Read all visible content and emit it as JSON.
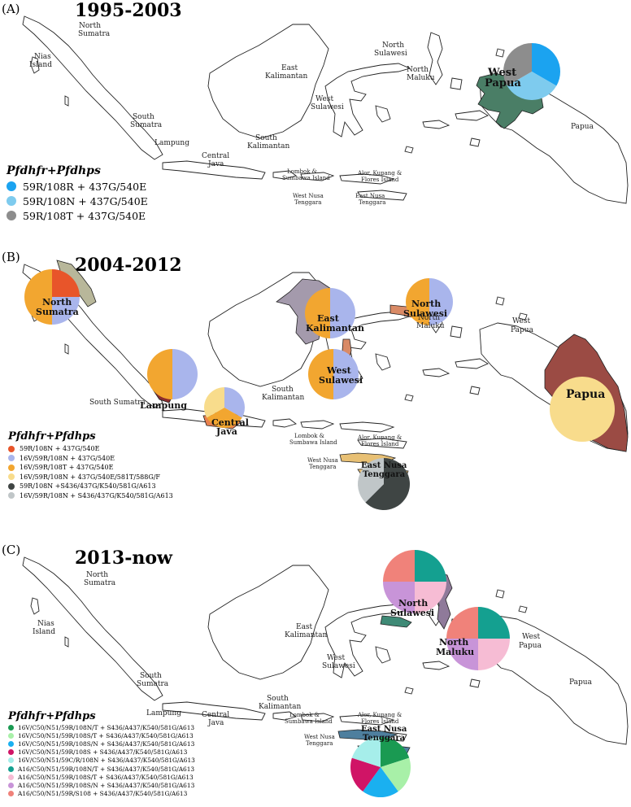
{
  "colors": {
    "c_blue": "#1ba3f0",
    "c_lightblue": "#7ecbee",
    "c_gray": "#8d8d8d",
    "c_red": "#e8552a",
    "c_periwinkle": "#a9b5ec",
    "c_orange": "#f2a630",
    "c_cream": "#f8dc8c",
    "c_dark": "#3f4544",
    "c_silver": "#c0c6c8",
    "c_green": "#1a9a52",
    "c_mint": "#a8f0a8",
    "c_sky": "#1ab0f0",
    "c_magenta": "#d01466",
    "c_aqua": "#a6eeea",
    "c_teal": "#14a090",
    "c_pink": "#f6bcd4",
    "c_orchid": "#c894d8",
    "c_salmon": "#f0827a"
  },
  "panels": [
    {
      "label": "(A)",
      "period": "1995-2003",
      "legend_title": "Pfdhfr+Pfdhps",
      "legend": [
        {
          "text": "59R/108R + 437G/540E",
          "color": "c_blue"
        },
        {
          "text": "59R/108N + 437G/540E",
          "color": "c_lightblue"
        },
        {
          "text": "59R/108T + 437G/540E",
          "color": "c_gray"
        }
      ],
      "labels": {
        "north_sumatra": "North",
        "north_sumatra2": "Sumatra",
        "nias": "Nias",
        "nias2": "Island",
        "south_sumatra": "South",
        "south_sumatra2": "Sumatra",
        "lampung": "Lampung",
        "central_java": "Central",
        "central_java2": "Java",
        "east_kal": "East",
        "east_kal2": "Kalimantan",
        "south_kal": "South",
        "south_kal2": "Kalimantan",
        "north_sul": "North",
        "north_sul2": "Sulawesi",
        "west_sul": "West",
        "west_sul2": "Sulawesi",
        "north_maluku": "North",
        "north_maluku2": "Maluku",
        "west_papua": "West",
        "west_papua2": "Papua",
        "papua": "Papua",
        "lombok": "Lombok &",
        "lombok2": "Sumbawa Island",
        "alor": "Alor, Kupang &",
        "alor2": "Flores Island",
        "wnt": "West Nusa",
        "wnt2": "Tenggara",
        "ent": "East Nusa",
        "ent2": "Tenggara"
      }
    },
    {
      "label": "(B)",
      "period": "2004-2012",
      "legend_title": "Pfdhfr+Pfdhps",
      "legend": [
        {
          "text": "59R/108N + 437G/540E",
          "color": "c_red"
        },
        {
          "text": "16V/59R/108N + 437G/540E",
          "color": "c_periwinkle"
        },
        {
          "text": "16V/59R/108T + 437G/540E",
          "color": "c_orange"
        },
        {
          "text": "16V/59R/108N + 437G/540E/581T/588G/F",
          "color": "c_cream"
        },
        {
          "text": "59R/108N +S436/437G/K540/581G/A613",
          "color": "c_dark"
        },
        {
          "text": "16V/59R/108N + S436/437G/K540/581G/A613",
          "color": "c_silver"
        }
      ],
      "labels": {
        "north_sumatra": "North",
        "north_sumatra2": "Sumatra",
        "south_sumatra": "South Sumatra",
        "lampung": "Lampung",
        "central_java": "Central",
        "central_java2": "Java",
        "east_kal": "East",
        "east_kal2": "Kalimantan",
        "south_kal": "South",
        "south_kal2": "Kalimantan",
        "north_sul": "North",
        "north_sul2": "Sulawesi",
        "west_sul": "West",
        "west_sul2": "Sulawesi",
        "north_maluku": "North",
        "north_maluku2": "Maluku",
        "west_papua": "West",
        "west_papua2": "Papua",
        "papua": "Papua",
        "lombok": "Lombok &",
        "lombok2": "Sumbawa Island",
        "alor": "Alor, Kupang &",
        "alor2": "Flores Island",
        "wnt": "West Nusa",
        "wnt2": "Tenggara",
        "ent": "East Nusa",
        "ent2": "Tenggara"
      }
    },
    {
      "label": "(C)",
      "period": "2013-now",
      "legend_title": "Pfdhfr+Pfdhps",
      "legend": [
        {
          "text": "16V/C50/N51/59R/108N/T + S436/A437/K540/581G/A613",
          "color": "c_green"
        },
        {
          "text": "16V/C50/N51/59R/108S/T + S436/A437/K540/581G/A613",
          "color": "c_mint"
        },
        {
          "text": "16V/C50/N51/59R/108S/N + S436/A437/K540/581G/A613",
          "color": "c_sky"
        },
        {
          "text": "16V/C50/N51/59R/108S + S436/A437/K540/581G/A613",
          "color": "c_magenta"
        },
        {
          "text": "16V/C50/N51/59C/R/108N + S436/A437/K540/581G/A613",
          "color": "c_aqua"
        },
        {
          "text": "A16/C50/N51/59R/108N/T + S436/A437/K540/581G/A613",
          "color": "c_teal"
        },
        {
          "text": "A16/C50/N51/59R/108S/T + S436/A437/K540/581G/A613",
          "color": "c_pink"
        },
        {
          "text": "A16/C50/N51/59R/108S/N + S436/A437/K540/581G/A613",
          "color": "c_orchid"
        },
        {
          "text": "A16/C50/N51/59R/S108 + S436/A437/K540/581G/A613",
          "color": "c_salmon"
        }
      ],
      "labels": {
        "north_sumatra": "North",
        "north_sumatra2": "Sumatra",
        "nias": "Nias",
        "nias2": "Island",
        "south_sumatra": "South",
        "south_sumatra2": "Sumatra",
        "lampung": "Lampung",
        "central_java": "Central",
        "central_java2": "Java",
        "east_kal": "East",
        "east_kal2": "Kalimantan",
        "south_kal": "South",
        "south_kal2": "Kalimantan",
        "north_sul": "North",
        "north_sul2": "Sulawesi",
        "west_sul": "West",
        "west_sul2": "Sulawesi",
        "north_maluku": "North",
        "north_maluku2": "Maluku",
        "west_papua": "West",
        "west_papua2": "Papua",
        "papua": "Papua",
        "lombok": "Lombok &",
        "lombok2": "Sumbawa Island",
        "alor": "Alor, Kupang &",
        "alor2": "Flores Island",
        "wnt": "West Nusa",
        "wnt2": "Tenggara",
        "ent": "East Nusa",
        "ent2": "Tenggara"
      }
    }
  ],
  "pies": [
    {
      "panel": 0,
      "region": "West Papua",
      "slices": [
        {
          "color": "c_blue",
          "value": 33.3
        },
        {
          "color": "c_lightblue",
          "value": 33.3
        },
        {
          "color": "c_gray",
          "value": 33.3
        }
      ]
    },
    {
      "panel": 1,
      "region": "North Sumatra",
      "slices": [
        {
          "color": "c_red",
          "value": 25
        },
        {
          "color": "c_periwinkle",
          "value": 25
        },
        {
          "color": "c_orange",
          "value": 50
        }
      ]
    },
    {
      "panel": 1,
      "region": "East Kalimantan",
      "slices": [
        {
          "color": "c_periwinkle",
          "value": 50
        },
        {
          "color": "c_orange",
          "value": 50
        }
      ]
    },
    {
      "panel": 1,
      "region": "North Sulawesi",
      "slices": [
        {
          "color": "c_periwinkle",
          "value": 50
        },
        {
          "color": "c_orange",
          "value": 50
        }
      ]
    },
    {
      "panel": 1,
      "region": "Lampung",
      "slices": [
        {
          "color": "c_periwinkle",
          "value": 50
        },
        {
          "color": "c_orange",
          "value": 50
        }
      ]
    },
    {
      "panel": 1,
      "region": "West Sulawesi",
      "slices": [
        {
          "color": "c_periwinkle",
          "value": 50
        },
        {
          "color": "c_orange",
          "value": 50
        }
      ]
    },
    {
      "panel": 1,
      "region": "Central Java",
      "slices": [
        {
          "color": "c_periwinkle",
          "value": 33.3
        },
        {
          "color": "c_orange",
          "value": 33.3
        },
        {
          "color": "c_cream",
          "value": 33.3
        }
      ]
    },
    {
      "panel": 1,
      "region": "Papua",
      "slices": [
        {
          "color": "c_cream",
          "value": 100
        }
      ]
    },
    {
      "panel": 1,
      "region": "East Nusa Tenggara",
      "slices": [
        {
          "color": "c_dark",
          "value": 62.5
        },
        {
          "color": "c_silver",
          "value": 37.5
        }
      ]
    },
    {
      "panel": 2,
      "region": "North Sulawesi",
      "slices": [
        {
          "color": "c_teal",
          "value": 25
        },
        {
          "color": "c_pink",
          "value": 25
        },
        {
          "color": "c_orchid",
          "value": 25
        },
        {
          "color": "c_salmon",
          "value": 25
        }
      ]
    },
    {
      "panel": 2,
      "region": "North Maluku",
      "slices": [
        {
          "color": "c_teal",
          "value": 25
        },
        {
          "color": "c_pink",
          "value": 25
        },
        {
          "color": "c_orchid",
          "value": 25
        },
        {
          "color": "c_salmon",
          "value": 25
        }
      ]
    },
    {
      "panel": 2,
      "region": "East Nusa Tenggara",
      "slices": [
        {
          "color": "c_green",
          "value": 20
        },
        {
          "color": "c_mint",
          "value": 20
        },
        {
          "color": "c_sky",
          "value": 20
        },
        {
          "color": "c_magenta",
          "value": 20
        },
        {
          "color": "c_aqua",
          "value": 20
        }
      ]
    }
  ]
}
